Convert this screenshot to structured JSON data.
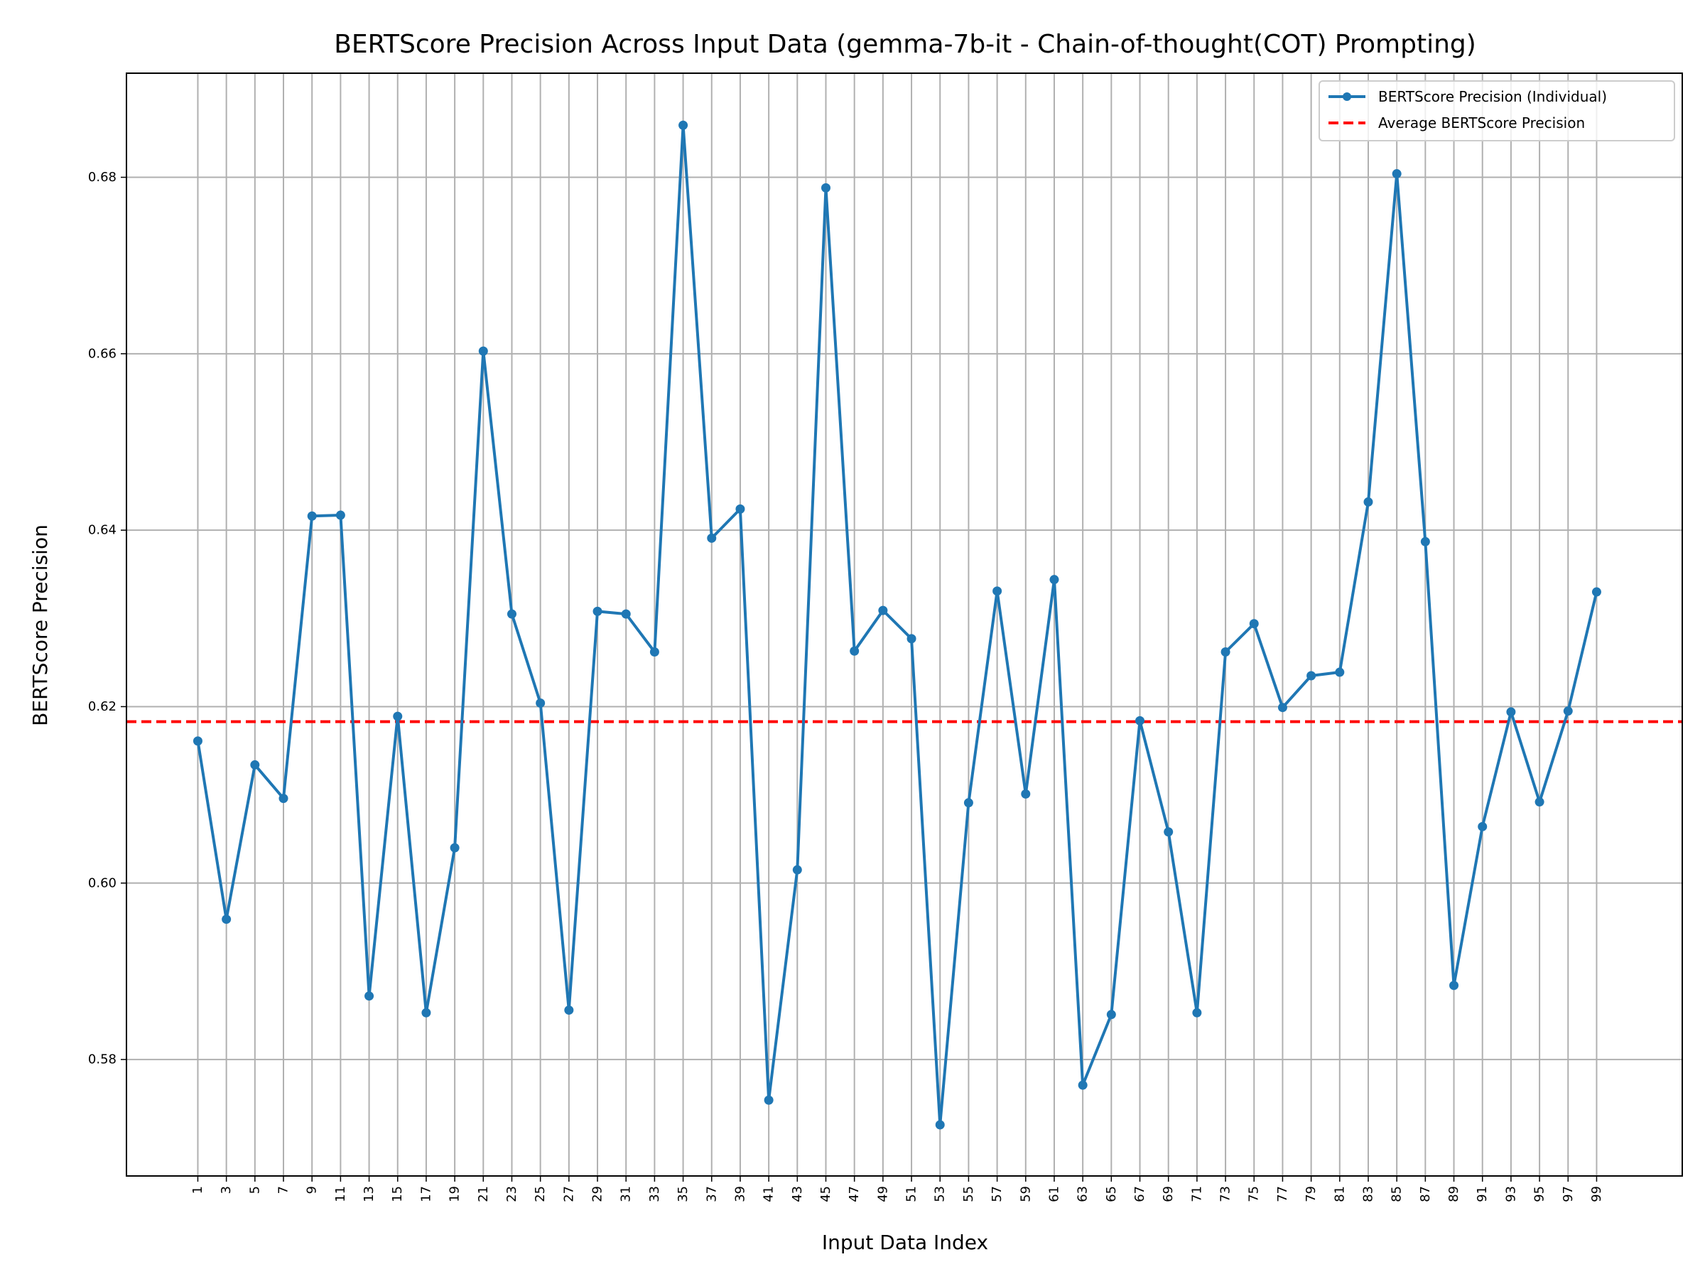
{
  "chart_data": {
    "type": "line",
    "title": "BERTScore Precision Across Input Data (gemma-7b-it - Chain-of-thought(COT) Prompting)",
    "xlabel": "Input Data Index",
    "ylabel": "BERTScore Precision",
    "x": [
      1,
      3,
      5,
      7,
      9,
      11,
      13,
      15,
      17,
      19,
      21,
      23,
      25,
      27,
      29,
      31,
      33,
      35,
      37,
      39,
      41,
      43,
      45,
      47,
      49,
      51,
      53,
      55,
      57,
      59,
      61,
      63,
      65,
      67,
      69,
      71,
      73,
      75,
      77,
      79,
      81,
      83,
      85,
      87,
      89,
      91,
      93,
      95,
      97,
      99
    ],
    "xticks": [
      "1",
      "3",
      "5",
      "7",
      "9",
      "11",
      "13",
      "15",
      "17",
      "19",
      "21",
      "23",
      "25",
      "27",
      "29",
      "31",
      "33",
      "35",
      "37",
      "39",
      "41",
      "43",
      "45",
      "47",
      "49",
      "51",
      "53",
      "55",
      "57",
      "59",
      "61",
      "63",
      "65",
      "67",
      "69",
      "71",
      "73",
      "75",
      "77",
      "79",
      "81",
      "83",
      "85",
      "87",
      "89",
      "91",
      "93",
      "95",
      "97",
      "99"
    ],
    "yticks": [
      "0.58",
      "0.60",
      "0.62",
      "0.64",
      "0.66",
      "0.68"
    ],
    "ytick_values": [
      0.58,
      0.6,
      0.62,
      0.64,
      0.66,
      0.68
    ],
    "xlim": [
      -4,
      105
    ],
    "ylim": [
      0.5668,
      0.6918
    ],
    "grid": true,
    "legend_position": "top-right",
    "series": [
      {
        "name": "BERTScore Precision (Individual)",
        "color": "#1f77b4",
        "style": "solid-with-markers",
        "values": [
          0.6161,
          0.5959,
          0.6134,
          0.6096,
          0.6416,
          0.6417,
          0.5872,
          0.6189,
          0.5853,
          0.604,
          0.6603,
          0.6305,
          0.6204,
          0.5856,
          0.6308,
          0.6305,
          0.6262,
          0.6859,
          0.6391,
          0.6424,
          0.5754,
          0.6015,
          0.6788,
          0.6263,
          0.6309,
          0.6277,
          0.5726,
          0.6091,
          0.6331,
          0.6101,
          0.6344,
          0.5771,
          0.5851,
          0.6184,
          0.6058,
          0.5853,
          0.6262,
          0.6294,
          0.6199,
          0.6235,
          0.6239,
          0.6432,
          0.6804,
          0.6387,
          0.5884,
          0.6064,
          0.6194,
          0.6092,
          0.6195,
          0.633
        ]
      },
      {
        "name": "Average BERTScore Precision",
        "color": "#ff0000",
        "style": "dashed",
        "value": 0.6183
      }
    ]
  }
}
